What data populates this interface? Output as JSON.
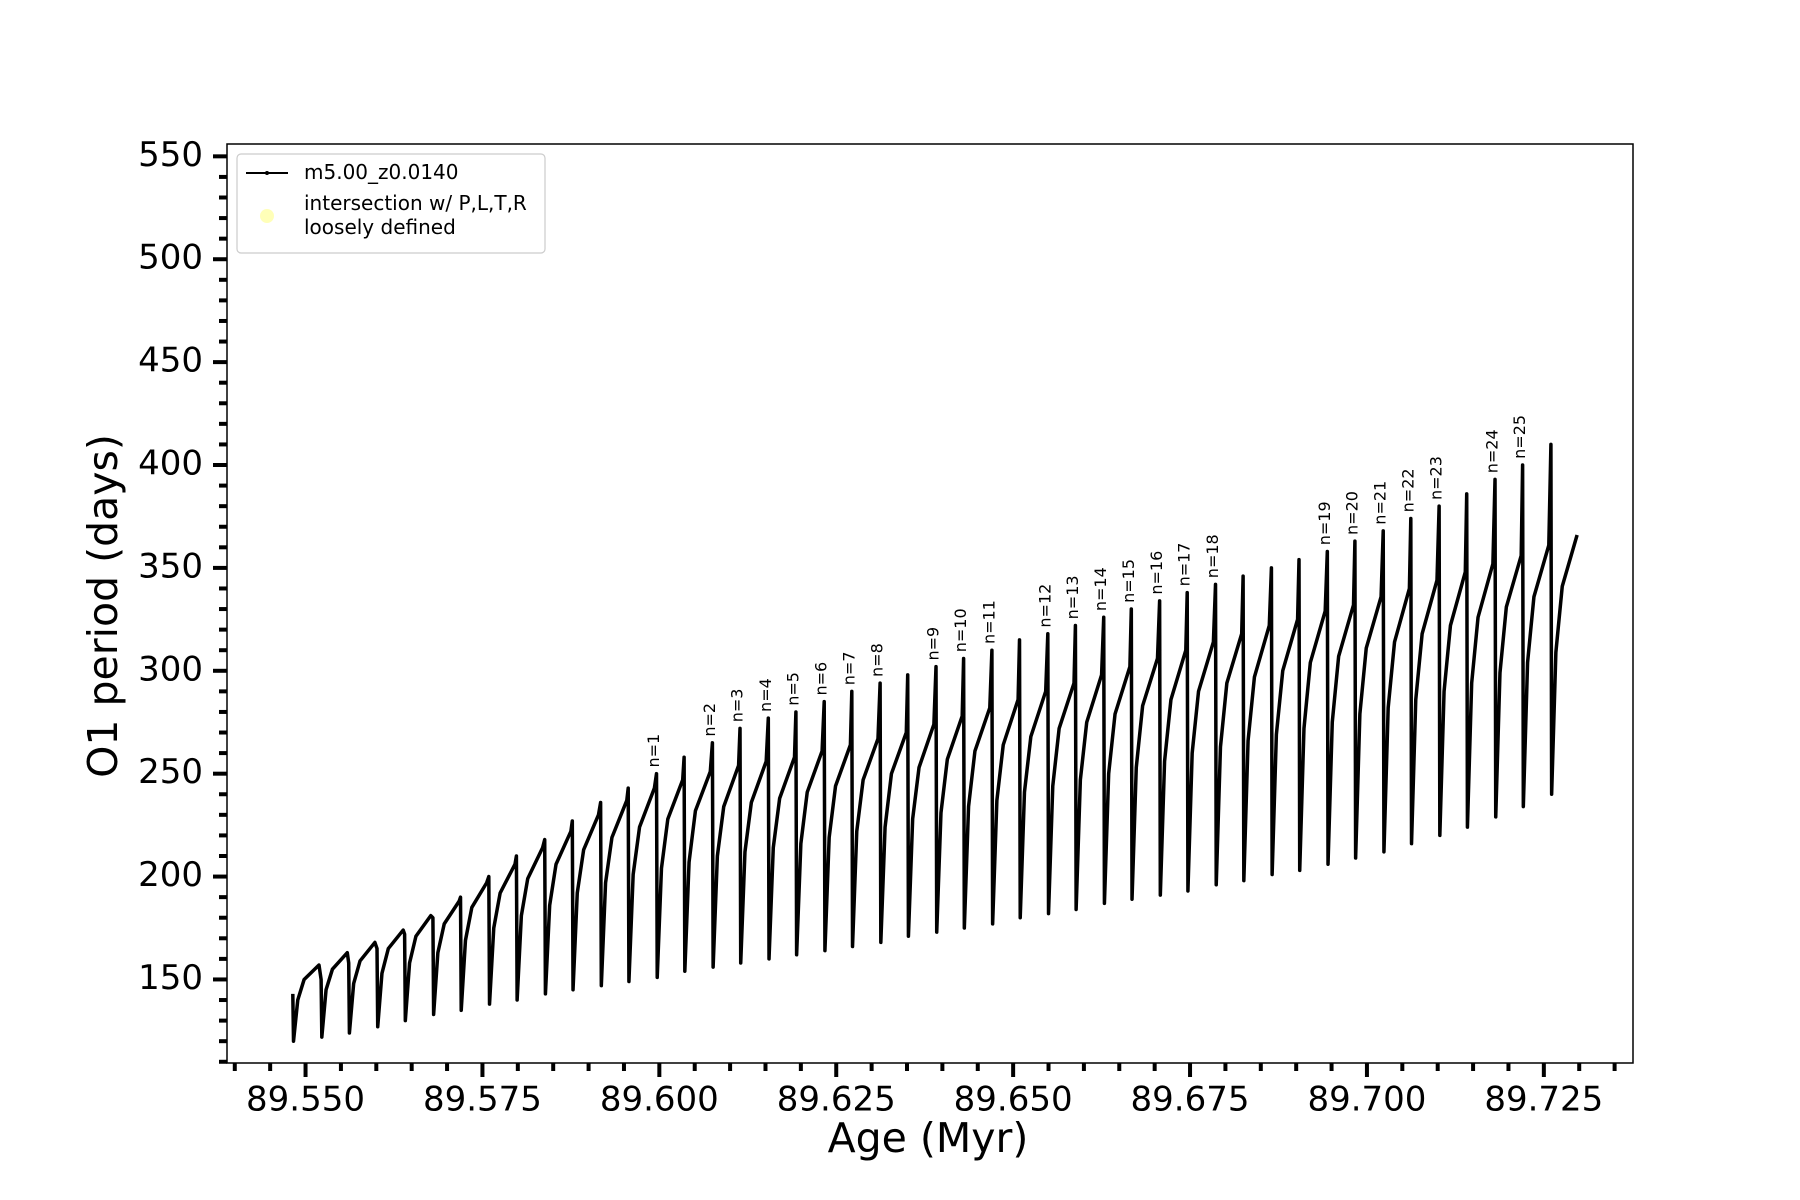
{
  "chart_data": {
    "type": "line",
    "xlabel": "Age (Myr)",
    "ylabel": "O1 period (days)",
    "xlim": [
      89.5389,
      89.7376
    ],
    "ylim": [
      109.4,
      556
    ],
    "xticks": [
      {
        "value": 89.55,
        "label": "89.550"
      },
      {
        "value": 89.575,
        "label": "89.575"
      },
      {
        "value": 89.6,
        "label": "89.600"
      },
      {
        "value": 89.625,
        "label": "89.625"
      },
      {
        "value": 89.65,
        "label": "89.650"
      },
      {
        "value": 89.675,
        "label": "89.675"
      },
      {
        "value": 89.7,
        "label": "89.700"
      },
      {
        "value": 89.725,
        "label": "89.725"
      }
    ],
    "xminor_ticks": [
      89.54,
      89.545,
      89.555,
      89.56,
      89.565,
      89.57,
      89.58,
      89.585,
      89.59,
      89.595,
      89.605,
      89.61,
      89.615,
      89.62,
      89.63,
      89.635,
      89.64,
      89.645,
      89.655,
      89.66,
      89.665,
      89.67,
      89.68,
      89.685,
      89.69,
      89.695,
      89.705,
      89.71,
      89.715,
      89.72,
      89.73,
      89.735
    ],
    "yticks": [
      150,
      200,
      250,
      300,
      350,
      400,
      450,
      500,
      550
    ],
    "yminor_ticks": [
      110,
      120,
      130,
      140,
      160,
      170,
      180,
      190,
      210,
      220,
      230,
      240,
      260,
      270,
      280,
      290,
      310,
      320,
      330,
      340,
      360,
      370,
      380,
      390,
      410,
      420,
      430,
      440,
      460,
      470,
      480,
      490,
      510,
      520,
      530,
      540
    ],
    "legend": "upper left",
    "series": [
      {
        "name": "m5.00_z0.0140",
        "color": "#000000",
        "x": [
          89.5482,
          89.5483,
          89.5489,
          89.5498,
          89.5519,
          89.5522,
          89.5523,
          89.5529,
          89.5538,
          89.5559,
          89.5561,
          89.5562,
          89.5568,
          89.5577,
          89.5598,
          89.5601,
          89.5602,
          89.5608,
          89.5617,
          89.5638,
          89.564,
          89.5641,
          89.5647,
          89.5656,
          89.5677,
          89.568,
          89.5681,
          89.5687,
          89.5696,
          89.5717,
          89.5719,
          89.572,
          89.5726,
          89.5735,
          89.5756,
          89.5759,
          89.576,
          89.5766,
          89.5775,
          89.5796,
          89.5798,
          89.5799,
          89.5805,
          89.5814,
          89.5835,
          89.5838,
          89.5839,
          89.5845,
          89.5854,
          89.5875,
          89.5877,
          89.5878,
          89.5884,
          89.5893,
          89.5914,
          89.5917,
          89.5918,
          89.5924,
          89.5933,
          89.5954,
          89.5956,
          89.5957,
          89.5963,
          89.5972,
          89.5993,
          89.5996,
          89.5997,
          89.6003,
          89.6012,
          89.6033,
          89.6035,
          89.6036,
          89.6042,
          89.6051,
          89.6072,
          89.6075,
          89.6076,
          89.6082,
          89.6091,
          89.6112,
          89.6114,
          89.6115,
          89.6121,
          89.613,
          89.6151,
          89.6154,
          89.6155,
          89.6161,
          89.617,
          89.6191,
          89.6193,
          89.6194,
          89.62,
          89.6209,
          89.623,
          89.6233,
          89.6234,
          89.624,
          89.6249,
          89.627,
          89.6272,
          89.6273,
          89.6279,
          89.6288,
          89.6309,
          89.6312,
          89.6313,
          89.6319,
          89.6328,
          89.6349,
          89.6351,
          89.6352,
          89.6358,
          89.6367,
          89.6388,
          89.6391,
          89.6392,
          89.6398,
          89.6407,
          89.6428,
          89.643,
          89.6431,
          89.6437,
          89.6446,
          89.6467,
          89.647,
          89.6471,
          89.6477,
          89.6486,
          89.6507,
          89.6509,
          89.651,
          89.6516,
          89.6525,
          89.6546,
          89.6549,
          89.655,
          89.6556,
          89.6565,
          89.6586,
          89.6588,
          89.6589,
          89.6595,
          89.6604,
          89.6625,
          89.6628,
          89.6629,
          89.6635,
          89.6644,
          89.6665,
          89.6667,
          89.6668,
          89.6674,
          89.6683,
          89.6704,
          89.6707,
          89.6708,
          89.6714,
          89.6723,
          89.6744,
          89.6746,
          89.6747,
          89.6753,
          89.6762,
          89.6783,
          89.6786,
          89.6787,
          89.6793,
          89.6802,
          89.6823,
          89.6825,
          89.6826,
          89.6832,
          89.6841,
          89.6862,
          89.6865,
          89.6866,
          89.6872,
          89.6881,
          89.6902,
          89.6904,
          89.6905,
          89.6911,
          89.692,
          89.6941,
          89.6944,
          89.6945,
          89.6951,
          89.696,
          89.6981,
          89.6983,
          89.6984,
          89.699,
          89.6999,
          89.702,
          89.7023,
          89.7024,
          89.703,
          89.7039,
          89.706,
          89.7062,
          89.7063,
          89.7069,
          89.7078,
          89.7099,
          89.7102,
          89.7103,
          89.7109,
          89.7118,
          89.7139,
          89.7141,
          89.7142,
          89.7148,
          89.7157,
          89.7178,
          89.7181,
          89.7182,
          89.7188,
          89.7197,
          89.7218,
          89.722,
          89.7221,
          89.7227,
          89.7236,
          89.7257,
          89.726,
          89.7261,
          89.7267,
          89.7276,
          89.7297
        ],
        "values": [
          143,
          120,
          140,
          150,
          157,
          150,
          122,
          145,
          155,
          163,
          158,
          124,
          148,
          159,
          168,
          165,
          127,
          153,
          165,
          174,
          172,
          130,
          158,
          171,
          181,
          180,
          133,
          163,
          177,
          188,
          190,
          135,
          169,
          185,
          197,
          200,
          138,
          175,
          192,
          206,
          210,
          140,
          181,
          199,
          214,
          218,
          143,
          186,
          206,
          222,
          227,
          145,
          192,
          213,
          230,
          236,
          147,
          197,
          219,
          237,
          243,
          149,
          201,
          224,
          243,
          250,
          151,
          204,
          228,
          247,
          258,
          154,
          207,
          232,
          251,
          265,
          156,
          210,
          234,
          254,
          272,
          158,
          212,
          236,
          256,
          277,
          160,
          214,
          238,
          258,
          280,
          162,
          216,
          241,
          261,
          285,
          164,
          219,
          244,
          264,
          290,
          166,
          222,
          247,
          267,
          294,
          168,
          224,
          250,
          270,
          298,
          171,
          228,
          253,
          274,
          302,
          173,
          231,
          257,
          278,
          306,
          175,
          234,
          261,
          282,
          310,
          177,
          237,
          264,
          286,
          315,
          180,
          241,
          268,
          290,
          318,
          182,
          244,
          272,
          294,
          322,
          184,
          247,
          275,
          298,
          326,
          187,
          250,
          279,
          302,
          330,
          189,
          253,
          283,
          306,
          334,
          191,
          256,
          286,
          310,
          338,
          193,
          260,
          290,
          314,
          342,
          196,
          263,
          294,
          318,
          346,
          198,
          266,
          297,
          322,
          350,
          201,
          269,
          300,
          325,
          354,
          203,
          272,
          304,
          329,
          358,
          206,
          275,
          307,
          332,
          363,
          209,
          279,
          311,
          336,
          368,
          212,
          282,
          314,
          340,
          374,
          216,
          286,
          318,
          344,
          380,
          220,
          290,
          322,
          348,
          386,
          224,
          294,
          326,
          352,
          393,
          229,
          299,
          331,
          356,
          400,
          234,
          304,
          336,
          361,
          410,
          240,
          309,
          341,
          366
        ]
      },
      {
        "name": "intersection w/ P,L,T,R\nloosely defined",
        "color": "#ffffb0"
      }
    ],
    "annotations": [
      {
        "text": "n=1",
        "x": 89.5996,
        "y": 253
      },
      {
        "text": "n=2",
        "x": 89.6075,
        "y": 268
      },
      {
        "text": "n=3",
        "x": 89.6114,
        "y": 275
      },
      {
        "text": "n=4",
        "x": 89.6154,
        "y": 280
      },
      {
        "text": "n=5",
        "x": 89.6193,
        "y": 283
      },
      {
        "text": "n=6",
        "x": 89.6233,
        "y": 288
      },
      {
        "text": "n=7",
        "x": 89.6272,
        "y": 293
      },
      {
        "text": "n=8",
        "x": 89.6312,
        "y": 297
      },
      {
        "text": "n=9",
        "x": 89.6391,
        "y": 305
      },
      {
        "text": "n=10",
        "x": 89.643,
        "y": 309
      },
      {
        "text": "n=11",
        "x": 89.647,
        "y": 313
      },
      {
        "text": "n=12",
        "x": 89.6549,
        "y": 321
      },
      {
        "text": "n=13",
        "x": 89.6588,
        "y": 325
      },
      {
        "text": "n=14",
        "x": 89.6628,
        "y": 329
      },
      {
        "text": "n=15",
        "x": 89.6667,
        "y": 333
      },
      {
        "text": "n=16",
        "x": 89.6707,
        "y": 337
      },
      {
        "text": "n=17",
        "x": 89.6746,
        "y": 341
      },
      {
        "text": "n=18",
        "x": 89.6786,
        "y": 345
      },
      {
        "text": "n=19",
        "x": 89.6944,
        "y": 361
      },
      {
        "text": "n=20",
        "x": 89.6983,
        "y": 366
      },
      {
        "text": "n=21",
        "x": 89.7023,
        "y": 371
      },
      {
        "text": "n=22",
        "x": 89.7062,
        "y": 377
      },
      {
        "text": "n=23",
        "x": 89.7102,
        "y": 383
      },
      {
        "text": "n=24",
        "x": 89.7181,
        "y": 396
      },
      {
        "text": "n=25",
        "x": 89.722,
        "y": 403
      }
    ]
  }
}
